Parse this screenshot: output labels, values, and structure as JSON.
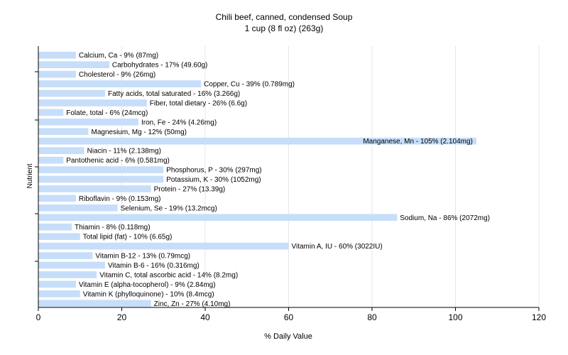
{
  "chart_data": {
    "type": "bar",
    "orientation": "horizontal",
    "title": "Chili beef, canned, condensed Soup",
    "subtitle": "1 cup (8 fl oz) (263g)",
    "xlabel": "% Daily Value",
    "ylabel": "Nutrient",
    "xlim": [
      0,
      120
    ],
    "xticks": [
      0,
      20,
      40,
      60,
      80,
      100,
      120
    ],
    "grid": true,
    "bar_color": "#c6defa",
    "categories": [
      "Calcium, Ca - 9% (87mg)",
      "Carbohydrates - 17% (49.60g)",
      "Cholesterol - 9% (26mg)",
      "Copper, Cu - 39% (0.789mg)",
      "Fatty acids, total saturated - 16% (3.266g)",
      "Fiber, total dietary - 26% (6.6g)",
      "Folate, total - 6% (24mcg)",
      "Iron, Fe - 24% (4.26mg)",
      "Magnesium, Mg - 12% (50mg)",
      "Manganese, Mn - 105% (2.104mg)",
      "Niacin - 11% (2.138mg)",
      "Pantothenic acid - 6% (0.581mg)",
      "Phosphorus, P - 30% (297mg)",
      "Potassium, K - 30% (1052mg)",
      "Protein - 27% (13.39g)",
      "Riboflavin - 9% (0.153mg)",
      "Selenium, Se - 19% (13.2mcg)",
      "Sodium, Na - 86% (2072mg)",
      "Thiamin - 8% (0.118mg)",
      "Total lipid (fat) - 10% (6.65g)",
      "Vitamin A, IU - 60% (3022IU)",
      "Vitamin B-12 - 13% (0.79mcg)",
      "Vitamin B-6 - 16% (0.316mg)",
      "Vitamin C, total ascorbic acid - 14% (8.2mg)",
      "Vitamin E (alpha-tocopherol) - 9% (2.84mg)",
      "Vitamin K (phylloquinone) - 10% (8.4mcg)",
      "Zinc, Zn - 27% (4.10mg)"
    ],
    "values": [
      9,
      17,
      9,
      39,
      16,
      26,
      6,
      24,
      12,
      105,
      11,
      6,
      30,
      30,
      27,
      9,
      19,
      86,
      8,
      10,
      60,
      13,
      16,
      14,
      9,
      10,
      27
    ]
  }
}
